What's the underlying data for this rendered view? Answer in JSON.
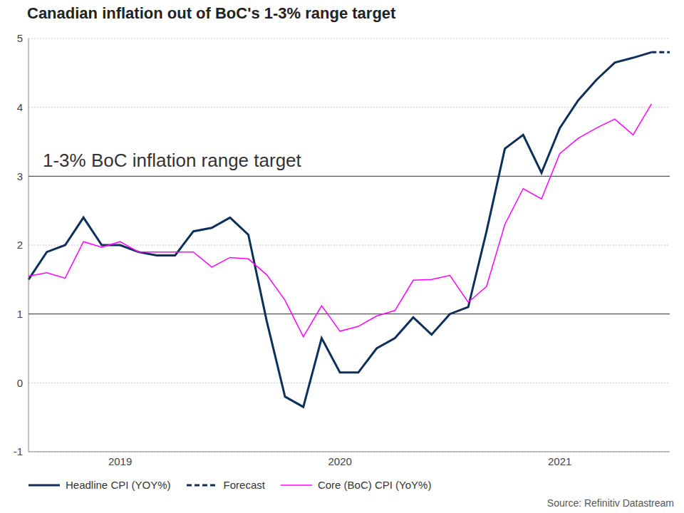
{
  "chart_data": {
    "type": "line",
    "title": "Canadian inflation out of BoC's 1-3% range target",
    "annotation": "1-3% BoC inflation range target",
    "source": "Source: Refinitiv Datastream",
    "target_range": [
      1,
      3
    ],
    "categories": [
      null,
      null,
      null,
      null,
      null,
      "2019",
      null,
      null,
      null,
      null,
      null,
      null,
      null,
      null,
      null,
      null,
      null,
      "2020",
      null,
      null,
      null,
      null,
      null,
      null,
      null,
      null,
      null,
      null,
      null,
      "2021",
      null,
      null,
      null,
      null,
      null,
      null
    ],
    "ylim": [
      -1,
      5
    ],
    "yticks": [
      -1,
      0,
      1,
      2,
      3,
      4,
      5
    ],
    "grid": true,
    "legend": "bottom",
    "series": [
      {
        "name": "Headline CPI (YOY%)",
        "color": "#0d2f5c",
        "line_style": "solid",
        "values": [
          1.5,
          1.9,
          2.0,
          2.4,
          2.0,
          2.0,
          1.9,
          1.85,
          1.85,
          2.2,
          2.25,
          2.4,
          2.15,
          0.9,
          -0.2,
          -0.35,
          0.65,
          0.15,
          0.15,
          0.5,
          0.65,
          0.95,
          0.7,
          1.0,
          1.1,
          2.2,
          3.4,
          3.6,
          3.05,
          3.7,
          4.1,
          4.4,
          4.65,
          4.72,
          4.8,
          null
        ]
      },
      {
        "name": "Forecast",
        "color": "#0d2f5c",
        "line_style": "dashed",
        "values": [
          null,
          null,
          null,
          null,
          null,
          null,
          null,
          null,
          null,
          null,
          null,
          null,
          null,
          null,
          null,
          null,
          null,
          null,
          null,
          null,
          null,
          null,
          null,
          null,
          null,
          null,
          null,
          null,
          null,
          null,
          null,
          null,
          null,
          null,
          4.8,
          4.8
        ]
      },
      {
        "name": "Core (BoC) CPI (YoY%)",
        "color": "#ff00ff",
        "line_style": "solid",
        "values": [
          1.55,
          1.6,
          1.52,
          2.05,
          1.97,
          2.05,
          1.9,
          1.9,
          1.9,
          1.9,
          1.68,
          1.82,
          1.8,
          1.57,
          1.2,
          0.67,
          1.12,
          0.75,
          0.82,
          0.97,
          1.05,
          1.49,
          1.5,
          1.56,
          1.17,
          1.4,
          2.3,
          2.82,
          2.67,
          3.33,
          3.55,
          3.7,
          3.83,
          3.6,
          4.05,
          null
        ]
      }
    ]
  }
}
